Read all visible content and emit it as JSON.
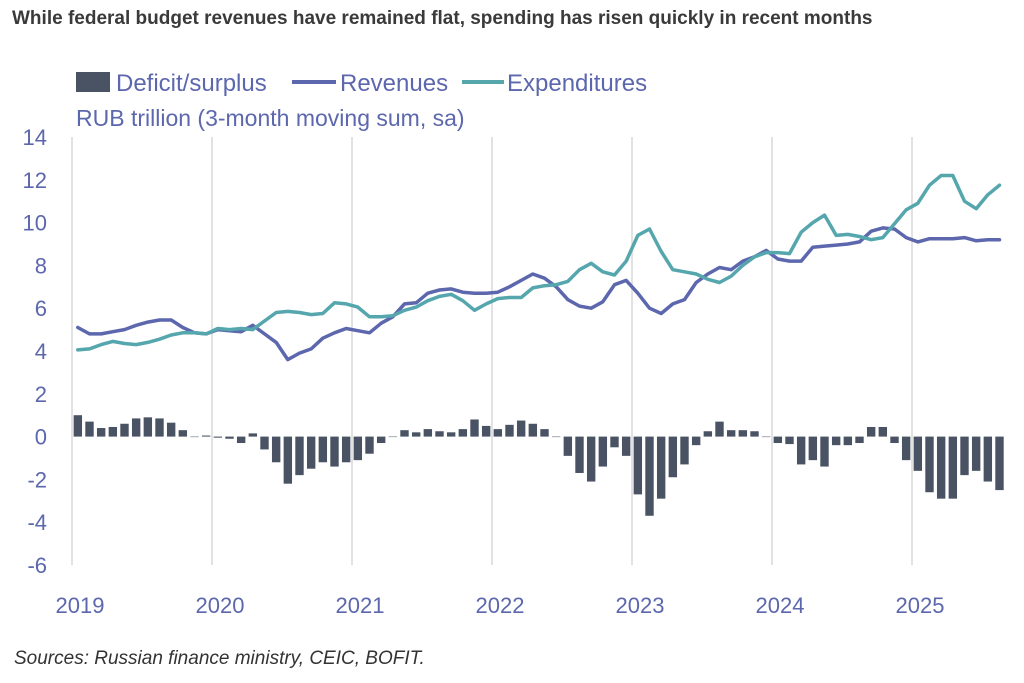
{
  "title": "While federal budget revenues have remained flat, spending has risen quickly in recent months",
  "source": "Sources: Russian finance ministry, CEIC, BOFIT.",
  "colors": {
    "deficit": "#4a5363",
    "revenues": "#5c67ad",
    "expenditures": "#55a6ad",
    "axis_text": "#5c67ad",
    "grid": "#d9d9d9"
  },
  "chart_data": {
    "type": "bar+line",
    "title": "While federal budget revenues have remained flat, spending has risen quickly in recent months",
    "ylabel": "RUB trillion (3-month moving sum, sa)",
    "xlabel": "",
    "ylim": [
      -6,
      14
    ],
    "yticks": [
      -6,
      -4,
      -2,
      0,
      2,
      4,
      6,
      8,
      10,
      12,
      14
    ],
    "x_start": "2019-01",
    "x_year_ticks": [
      "2019",
      "2020",
      "2021",
      "2022",
      "2023",
      "2024",
      "2025"
    ],
    "grid": "vertical lines at year starts",
    "legend": [
      "Deficit/surplus",
      "Revenues",
      "Expenditures"
    ],
    "legend_position": "top-left",
    "series": [
      {
        "name": "Deficit/surplus",
        "type": "bar",
        "values": [
          1.0,
          0.7,
          0.4,
          0.45,
          0.6,
          0.85,
          0.9,
          0.85,
          0.65,
          0.3,
          0.0,
          0.05,
          -0.05,
          -0.1,
          -0.3,
          0.15,
          -0.6,
          -1.2,
          -2.2,
          -1.8,
          -1.5,
          -1.2,
          -1.4,
          -1.2,
          -1.1,
          -0.8,
          -0.3,
          0.0,
          0.3,
          0.2,
          0.35,
          0.25,
          0.2,
          0.35,
          0.8,
          0.5,
          0.35,
          0.55,
          0.75,
          0.6,
          0.35,
          0.0,
          -0.9,
          -1.7,
          -2.1,
          -1.4,
          -0.5,
          -0.9,
          -2.7,
          -3.7,
          -2.9,
          -1.9,
          -1.3,
          -0.4,
          0.25,
          0.7,
          0.3,
          0.3,
          0.25,
          0.0,
          -0.3,
          -0.35,
          -1.3,
          -1.1,
          -1.4,
          -0.4,
          -0.4,
          -0.3,
          0.45,
          0.45,
          -0.3,
          -1.1,
          -1.6,
          -2.6,
          -2.9,
          -2.9,
          -1.8,
          -1.6,
          -2.1,
          -2.5
        ]
      },
      {
        "name": "Revenues",
        "type": "line",
        "values": [
          5.1,
          4.8,
          4.8,
          4.9,
          5.0,
          5.2,
          5.35,
          5.45,
          5.45,
          5.1,
          4.85,
          4.8,
          5.0,
          4.95,
          4.9,
          5.2,
          4.8,
          4.4,
          3.6,
          3.9,
          4.1,
          4.6,
          4.85,
          5.05,
          4.95,
          4.85,
          5.3,
          5.6,
          6.2,
          6.25,
          6.7,
          6.85,
          6.9,
          6.75,
          6.7,
          6.7,
          6.75,
          7.0,
          7.3,
          7.6,
          7.4,
          7.0,
          6.4,
          6.1,
          6.0,
          6.3,
          7.1,
          7.3,
          6.7,
          6.0,
          5.75,
          6.2,
          6.4,
          7.2,
          7.6,
          7.9,
          7.8,
          8.2,
          8.4,
          8.7,
          8.3,
          8.2,
          8.2,
          8.85,
          8.9,
          8.95,
          9.0,
          9.1,
          9.6,
          9.75,
          9.7,
          9.3,
          9.1,
          9.25,
          9.25,
          9.25,
          9.3,
          9.15,
          9.2,
          9.2
        ]
      },
      {
        "name": "Expenditures",
        "type": "line",
        "values": [
          4.05,
          4.1,
          4.3,
          4.45,
          4.35,
          4.3,
          4.4,
          4.55,
          4.75,
          4.85,
          4.85,
          4.8,
          5.05,
          5.0,
          5.05,
          5.0,
          5.4,
          5.8,
          5.85,
          5.8,
          5.7,
          5.75,
          6.25,
          6.2,
          6.05,
          5.6,
          5.6,
          5.65,
          5.9,
          6.05,
          6.35,
          6.55,
          6.65,
          6.35,
          5.9,
          6.2,
          6.45,
          6.5,
          6.5,
          6.95,
          7.05,
          7.1,
          7.25,
          7.8,
          8.1,
          7.7,
          7.55,
          8.2,
          9.4,
          9.7,
          8.65,
          7.8,
          7.7,
          7.6,
          7.35,
          7.2,
          7.5,
          8.0,
          8.4,
          8.6,
          8.6,
          8.55,
          9.55,
          10.0,
          10.35,
          9.4,
          9.45,
          9.35,
          9.2,
          9.3,
          9.95,
          10.6,
          10.9,
          11.75,
          12.2,
          12.2,
          11.0,
          10.65,
          11.3,
          11.75
        ]
      }
    ]
  }
}
